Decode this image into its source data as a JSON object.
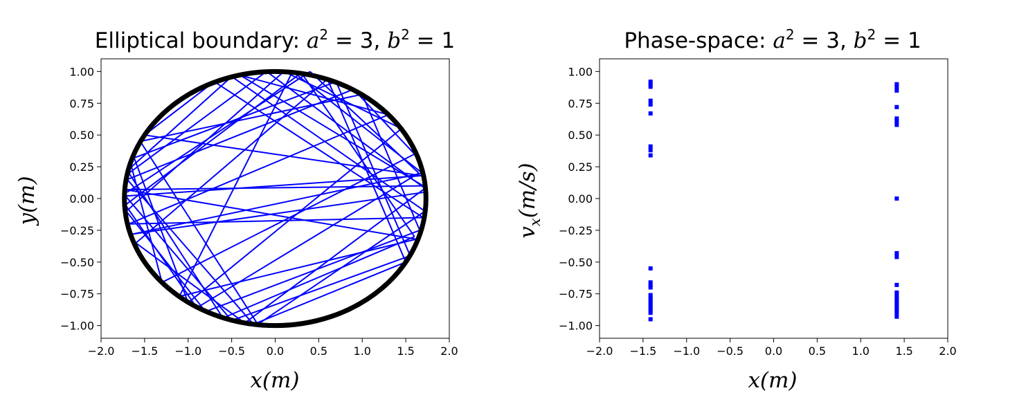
{
  "chart_data": [
    {
      "type": "line",
      "title_prefix": "Elliptical boundary: ",
      "title_math": {
        "a_sq": "a",
        "sup1": "2",
        "eq1": " = 3, ",
        "b_sq": "b",
        "sup2": "2",
        "eq2": " = 1"
      },
      "xlabel": "x(m)",
      "ylabel": "y(m)",
      "xlim": [
        -2.0,
        2.0
      ],
      "ylim": [
        -1.1,
        1.1
      ],
      "xticks": [
        "−2.0",
        "−1.5",
        "−1.0",
        "−0.5",
        "0.0",
        "0.5",
        "1.0",
        "1.5",
        "2.0"
      ],
      "xtick_values": [
        -2.0,
        -1.5,
        -1.0,
        -0.5,
        0.0,
        0.5,
        1.0,
        1.5,
        2.0
      ],
      "yticks": [
        "−1.00",
        "−0.75",
        "−0.50",
        "−0.25",
        "0.00",
        "0.25",
        "0.50",
        "0.75",
        "1.00"
      ],
      "ytick_values": [
        -1.0,
        -0.75,
        -0.5,
        -0.25,
        0.0,
        0.25,
        0.5,
        0.75,
        1.0
      ],
      "boundary": {
        "a": 1.732,
        "b": 1.0,
        "color": "#000000"
      },
      "trajectory_color": "#0000ff",
      "trajectory": [
        [
          -1.7,
          0.05
        ],
        [
          0.4,
          1.0
        ],
        [
          1.65,
          0.2
        ],
        [
          -0.9,
          -0.86
        ],
        [
          -1.72,
          -0.05
        ],
        [
          0.3,
          0.99
        ],
        [
          1.6,
          -0.3
        ],
        [
          -0.6,
          -0.94
        ],
        [
          -1.68,
          0.2
        ],
        [
          -0.1,
          1.0
        ],
        [
          1.72,
          0.08
        ],
        [
          -0.35,
          -0.98
        ],
        [
          -1.6,
          -0.35
        ],
        [
          0.6,
          0.94
        ],
        [
          1.5,
          -0.5
        ],
        [
          -0.25,
          -0.99
        ],
        [
          -1.7,
          0.15
        ],
        [
          0.9,
          0.86
        ],
        [
          1.6,
          0.35
        ],
        [
          -1.3,
          -0.66
        ],
        [
          -1.65,
          0.25
        ],
        [
          -0.5,
          0.96
        ],
        [
          1.72,
          -0.1
        ],
        [
          -0.2,
          -0.99
        ],
        [
          -1.55,
          0.45
        ],
        [
          1.0,
          0.82
        ],
        [
          1.66,
          -0.25
        ],
        [
          -0.8,
          -0.89
        ],
        [
          -1.71,
          -0.1
        ],
        [
          0.1,
          1.0
        ],
        [
          1.45,
          0.55
        ],
        [
          -1.0,
          -0.82
        ],
        [
          -1.62,
          0.32
        ],
        [
          0.7,
          0.92
        ],
        [
          1.55,
          -0.45
        ],
        [
          -0.5,
          -0.96
        ],
        [
          -1.72,
          0.02
        ],
        [
          1.68,
          0.18
        ],
        [
          -1.5,
          0.5
        ],
        [
          -0.7,
          0.92
        ],
        [
          1.7,
          -0.15
        ],
        [
          -1.68,
          -0.2
        ],
        [
          1.3,
          0.66
        ],
        [
          -0.4,
          0.97
        ],
        [
          1.7,
          0.1
        ],
        [
          -1.72,
          0.07
        ],
        [
          1.62,
          -0.32
        ],
        [
          -1.1,
          -0.77
        ],
        [
          0.2,
          1.0
        ],
        [
          1.69,
          0.2
        ],
        [
          -1.64,
          -0.28
        ],
        [
          1.72,
          0.05
        ]
      ]
    },
    {
      "type": "scatter",
      "title_prefix": "Phase-space: ",
      "title_math": {
        "a_sq": "a",
        "sup1": "2",
        "eq1": " = 3, ",
        "b_sq": "b",
        "sup2": "2",
        "eq2": " = 1"
      },
      "xlabel": "x(m)",
      "ylabel_main": "v",
      "ylabel_sub": "x",
      "ylabel_rest": "(m/s)",
      "xlim": [
        -2.0,
        2.0
      ],
      "ylim": [
        -1.1,
        1.1
      ],
      "xticks": [
        "−2.0",
        "−1.5",
        "−1.0",
        "−0.5",
        "0.0",
        "0.5",
        "1.0",
        "1.5",
        "2.0"
      ],
      "xtick_values": [
        -2.0,
        -1.5,
        -1.0,
        -0.5,
        0.0,
        0.5,
        1.0,
        1.5,
        2.0
      ],
      "yticks": [
        "−1.00",
        "−0.75",
        "−0.50",
        "−0.25",
        "0.00",
        "0.25",
        "0.50",
        "0.75",
        "1.00"
      ],
      "ytick_values": [
        -1.0,
        -0.75,
        -0.5,
        -0.25,
        0.0,
        0.25,
        0.5,
        0.75,
        1.0
      ],
      "marker_color": "#0000ff",
      "points": [
        [
          -1.414,
          0.92
        ],
        [
          -1.414,
          0.9
        ],
        [
          -1.414,
          0.88
        ],
        [
          -1.414,
          0.77
        ],
        [
          -1.414,
          0.74
        ],
        [
          -1.414,
          0.67
        ],
        [
          -1.414,
          0.41
        ],
        [
          -1.414,
          0.38
        ],
        [
          -1.414,
          0.34
        ],
        [
          -1.414,
          -0.55
        ],
        [
          -1.414,
          -0.66
        ],
        [
          -1.414,
          -0.68
        ],
        [
          -1.414,
          -0.7
        ],
        [
          -1.414,
          -0.76
        ],
        [
          -1.414,
          -0.78
        ],
        [
          -1.414,
          -0.8
        ],
        [
          -1.414,
          -0.82
        ],
        [
          -1.414,
          -0.84
        ],
        [
          -1.414,
          -0.86
        ],
        [
          -1.414,
          -0.88
        ],
        [
          -1.414,
          -0.9
        ],
        [
          -1.414,
          -0.95
        ],
        [
          1.414,
          0.9
        ],
        [
          1.414,
          0.88
        ],
        [
          1.414,
          0.85
        ],
        [
          1.414,
          0.72
        ],
        [
          1.414,
          0.63
        ],
        [
          1.414,
          0.61
        ],
        [
          1.414,
          0.58
        ],
        [
          1.414,
          0.0
        ],
        [
          1.414,
          -0.43
        ],
        [
          1.414,
          -0.46
        ],
        [
          1.414,
          -0.68
        ],
        [
          1.414,
          -0.74
        ],
        [
          1.414,
          -0.76
        ],
        [
          1.414,
          -0.78
        ],
        [
          1.414,
          -0.8
        ],
        [
          1.414,
          -0.82
        ],
        [
          1.414,
          -0.84
        ],
        [
          1.414,
          -0.86
        ],
        [
          1.414,
          -0.88
        ],
        [
          1.414,
          -0.9
        ],
        [
          1.414,
          -0.93
        ]
      ]
    }
  ]
}
